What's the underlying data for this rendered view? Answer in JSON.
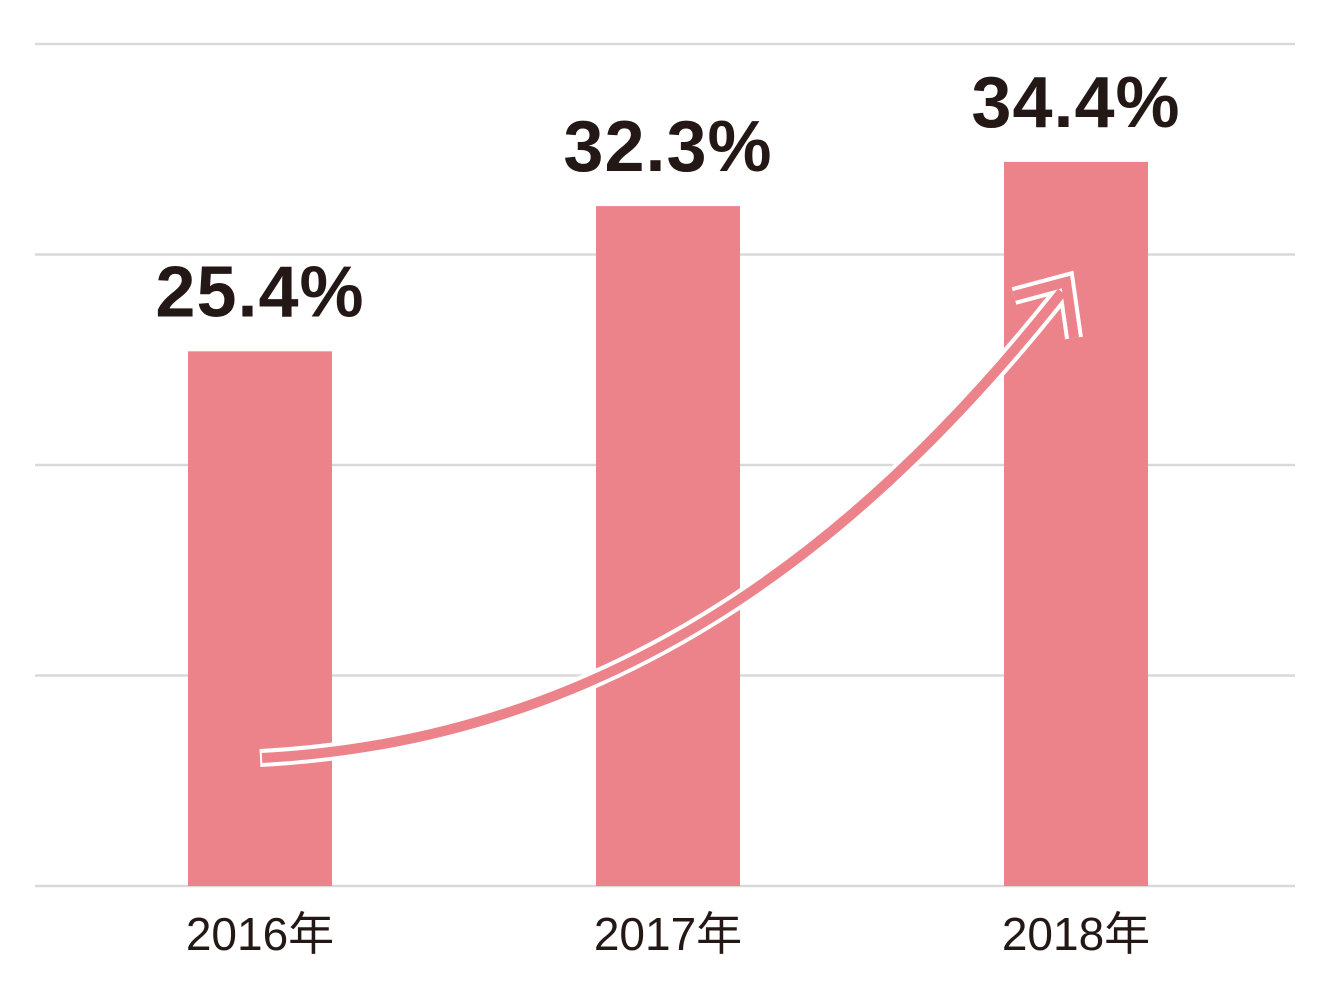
{
  "chart_data": {
    "type": "bar",
    "categories": [
      "2016年",
      "2017年",
      "2018年"
    ],
    "values": [
      25.4,
      32.3,
      34.4
    ],
    "value_labels": [
      "25.4%",
      "32.3%",
      "34.4%"
    ],
    "color": "#ec838b",
    "ylim": [
      0,
      40
    ],
    "yticks": [
      0,
      10,
      20,
      30,
      40
    ],
    "grid": true
  }
}
